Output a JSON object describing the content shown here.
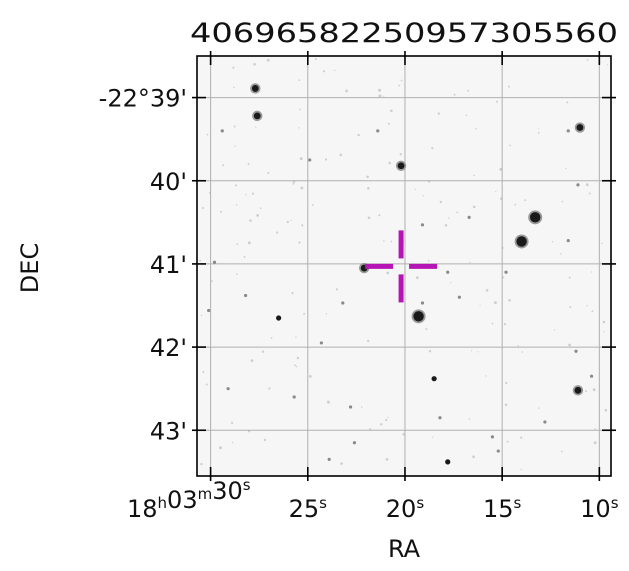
{
  "chart_data": {
    "type": "image",
    "xlabel": "RA",
    "ylabel": "DEC",
    "grid": true,
    "x_ticks_bottom": [
      {
        "h": "18",
        "m": "03",
        "s": "30",
        "text": "18h03m30s",
        "ra_sec": 30
      },
      {
        "s": "25",
        "text": "25s",
        "ra_sec": 25
      },
      {
        "s": "20",
        "text": "20s",
        "ra_sec": 20
      },
      {
        "s": "15",
        "text": "15s",
        "ra_sec": 15
      },
      {
        "s": "10",
        "text": "10s",
        "ra_sec": 10
      }
    ],
    "x_ticks_top_text": "40696582250957305560",
    "x_ticks_top_parts": [
      "4069",
      "6582",
      "2509",
      "5730",
      "560"
    ],
    "y_ticks": [
      {
        "text": "-22°39'",
        "dec_min": 39
      },
      {
        "text": "40'",
        "dec_min": 40
      },
      {
        "text": "41'",
        "dec_min": 41
      },
      {
        "text": "42'",
        "dec_min": 42
      },
      {
        "text": "43'",
        "dec_min": 43
      }
    ],
    "xlim_ra_sec": [
      30.7,
      9.4
    ],
    "ylim_dec_min": [
      38.5,
      43.55
    ],
    "marker": {
      "type": "crosshair",
      "color": "#b515b5",
      "ra_sec": 20.2,
      "dec_min": 41.03
    },
    "stars": [
      {
        "ra_sec": 27.7,
        "dec_min": 38.89,
        "mag": 3
      },
      {
        "ra_sec": 27.6,
        "dec_min": 39.22,
        "mag": 3
      },
      {
        "ra_sec": 29.4,
        "dec_min": 39.4,
        "mag": 1
      },
      {
        "ra_sec": 11.0,
        "dec_min": 39.36,
        "mag": 3
      },
      {
        "ra_sec": 11.6,
        "dec_min": 39.4,
        "mag": 1
      },
      {
        "ra_sec": 20.2,
        "dec_min": 39.82,
        "mag": 3
      },
      {
        "ra_sec": 21.4,
        "dec_min": 39.4,
        "mag": 1
      },
      {
        "ra_sec": 24.9,
        "dec_min": 39.75,
        "mag": 1
      },
      {
        "ra_sec": 11.1,
        "dec_min": 40.05,
        "mag": 1
      },
      {
        "ra_sec": 13.3,
        "dec_min": 40.44,
        "mag": 4
      },
      {
        "ra_sec": 14.0,
        "dec_min": 40.73,
        "mag": 4
      },
      {
        "ra_sec": 16.7,
        "dec_min": 40.44,
        "mag": 1
      },
      {
        "ra_sec": 19.1,
        "dec_min": 40.53,
        "mag": 1
      },
      {
        "ra_sec": 22.1,
        "dec_min": 41.05,
        "mag": 3
      },
      {
        "ra_sec": 17.8,
        "dec_min": 41.1,
        "mag": 1
      },
      {
        "ra_sec": 19.3,
        "dec_min": 41.63,
        "mag": 4
      },
      {
        "ra_sec": 19.1,
        "dec_min": 41.47,
        "mag": 1
      },
      {
        "ra_sec": 17.2,
        "dec_min": 41.4,
        "mag": 1
      },
      {
        "ra_sec": 26.5,
        "dec_min": 41.65,
        "mag": 2
      },
      {
        "ra_sec": 28.2,
        "dec_min": 41.38,
        "mag": 1
      },
      {
        "ra_sec": 29.8,
        "dec_min": 40.98,
        "mag": 1
      },
      {
        "ra_sec": 30.1,
        "dec_min": 41.56,
        "mag": 1
      },
      {
        "ra_sec": 18.5,
        "dec_min": 42.38,
        "mag": 2
      },
      {
        "ra_sec": 18.2,
        "dec_min": 42.85,
        "mag": 1
      },
      {
        "ra_sec": 11.1,
        "dec_min": 42.52,
        "mag": 3
      },
      {
        "ra_sec": 10.4,
        "dec_min": 42.35,
        "mag": 1
      },
      {
        "ra_sec": 11.2,
        "dec_min": 42.05,
        "mag": 1
      },
      {
        "ra_sec": 17.8,
        "dec_min": 43.38,
        "mag": 2
      },
      {
        "ra_sec": 15.5,
        "dec_min": 43.08,
        "mag": 1
      },
      {
        "ra_sec": 15.2,
        "dec_min": 43.25,
        "mag": 1
      },
      {
        "ra_sec": 22.8,
        "dec_min": 42.72,
        "mag": 1
      },
      {
        "ra_sec": 25.7,
        "dec_min": 42.6,
        "mag": 1
      },
      {
        "ra_sec": 23.9,
        "dec_min": 43.35,
        "mag": 1
      },
      {
        "ra_sec": 22.6,
        "dec_min": 43.15,
        "mag": 1
      },
      {
        "ra_sec": 12.8,
        "dec_min": 42.9,
        "mag": 1
      },
      {
        "ra_sec": 14.8,
        "dec_min": 41.1,
        "mag": 1
      },
      {
        "ra_sec": 11.6,
        "dec_min": 40.72,
        "mag": 1
      },
      {
        "ra_sec": 24.3,
        "dec_min": 41.95,
        "mag": 1
      },
      {
        "ra_sec": 29.1,
        "dec_min": 42.5,
        "mag": 1
      },
      {
        "ra_sec": 23.2,
        "dec_min": 41.47,
        "mag": 1
      }
    ]
  }
}
